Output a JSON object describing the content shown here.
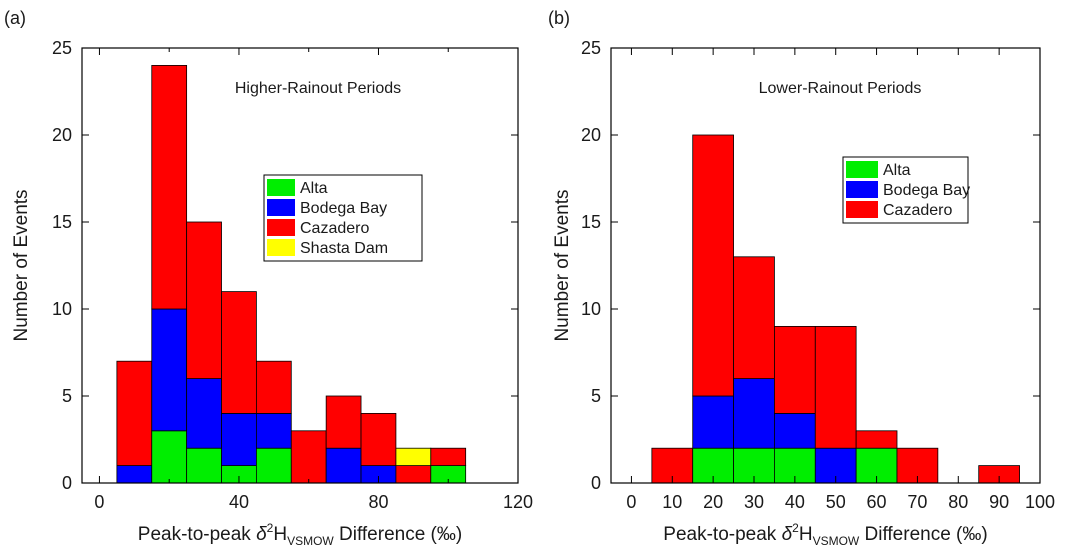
{
  "chart_data": [
    {
      "type": "bar",
      "stacked": true,
      "panel_label": "(a)",
      "annotation": "Higher-Rainout Periods",
      "xlabel": {
        "main": "Peak-to-peak ",
        "delta": "δ",
        "sup": "2",
        "element": "H",
        "sub": "VSMOW",
        "tail": " Difference (‰)"
      },
      "ylabel": "Number of Events",
      "xlim": [
        -5,
        120
      ],
      "ylim": [
        0,
        25
      ],
      "xticks": [
        0,
        40,
        80,
        120
      ],
      "yticks": [
        0,
        5,
        10,
        15,
        20,
        25
      ],
      "x_minor_ticks": [
        20,
        60,
        100
      ],
      "bin_width": 10,
      "x": [
        10,
        20,
        30,
        40,
        50,
        60,
        70,
        80,
        90,
        100
      ],
      "series": [
        {
          "name": "Alta",
          "color": "#00ee00",
          "values": [
            0,
            3,
            2,
            1,
            2,
            0,
            0,
            0,
            0,
            1
          ]
        },
        {
          "name": "Bodega Bay",
          "color": "#0000ff",
          "values": [
            1,
            7,
            4,
            3,
            2,
            0,
            2,
            1,
            0,
            0
          ]
        },
        {
          "name": "Cazadero",
          "color": "#ff0000",
          "values": [
            6,
            14,
            9,
            7,
            3,
            3,
            3,
            3,
            1,
            1
          ]
        },
        {
          "name": "Shasta Dam",
          "color": "#ffff00",
          "values": [
            0,
            0,
            0,
            0,
            0,
            0,
            0,
            0,
            1,
            0
          ]
        }
      ],
      "legend_position": "upper-right"
    },
    {
      "type": "bar",
      "stacked": true,
      "panel_label": "(b)",
      "annotation": "Lower-Rainout Periods",
      "xlabel": {
        "main": "Peak-to-peak ",
        "delta": "δ",
        "sup": "2",
        "element": "H",
        "sub": "VSMOW",
        "tail": " Difference (‰)"
      },
      "ylabel": "Number of Events",
      "xlim": [
        -5,
        100
      ],
      "ylim": [
        0,
        25
      ],
      "xticks": [
        0,
        10,
        20,
        30,
        40,
        50,
        60,
        70,
        80,
        90,
        100
      ],
      "yticks": [
        0,
        5,
        10,
        15,
        20,
        25
      ],
      "x_minor_ticks": [],
      "bin_width": 10,
      "x": [
        10,
        20,
        30,
        40,
        50,
        60,
        70,
        90
      ],
      "series": [
        {
          "name": "Alta",
          "color": "#00ee00",
          "values": [
            0,
            2,
            2,
            2,
            0,
            2,
            0,
            0
          ]
        },
        {
          "name": "Bodega Bay",
          "color": "#0000ff",
          "values": [
            0,
            3,
            4,
            2,
            2,
            0,
            0,
            0
          ]
        },
        {
          "name": "Cazadero",
          "color": "#ff0000",
          "values": [
            2,
            15,
            7,
            5,
            7,
            1,
            2,
            1
          ]
        }
      ],
      "legend_position": "upper-right"
    }
  ]
}
